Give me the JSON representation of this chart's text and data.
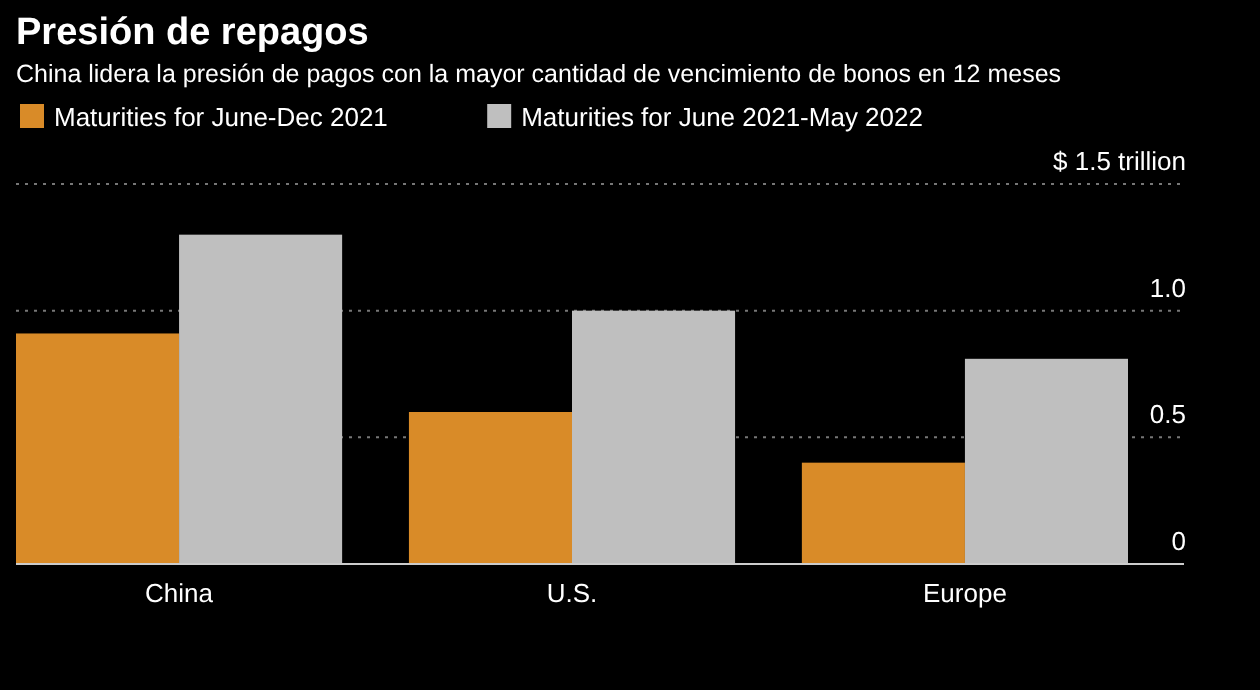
{
  "chart_data": {
    "type": "bar",
    "title": "Presión de repagos",
    "subtitle": "China lidera la presión de pagos con la mayor cantidad de vencimiento de bonos en 12 meses",
    "categories": [
      "China",
      "U.S.",
      "Europe"
    ],
    "series": [
      {
        "name": "Maturities for June-Dec 2021",
        "color": "#d98b28",
        "values": [
          0.91,
          0.6,
          0.4
        ]
      },
      {
        "name": "Maturities for June 2021-May 2022",
        "color": "#bfbfbf",
        "values": [
          1.3,
          1.0,
          0.81
        ]
      }
    ],
    "ylim": [
      0,
      1.5
    ],
    "yticks": [
      0,
      0.5,
      {
        "value": 1,
        "label": "1.0"
      },
      {
        "value": 1.5,
        "label": "$ 1.5 trillion"
      }
    ],
    "grid": "y",
    "legend": "top left"
  }
}
